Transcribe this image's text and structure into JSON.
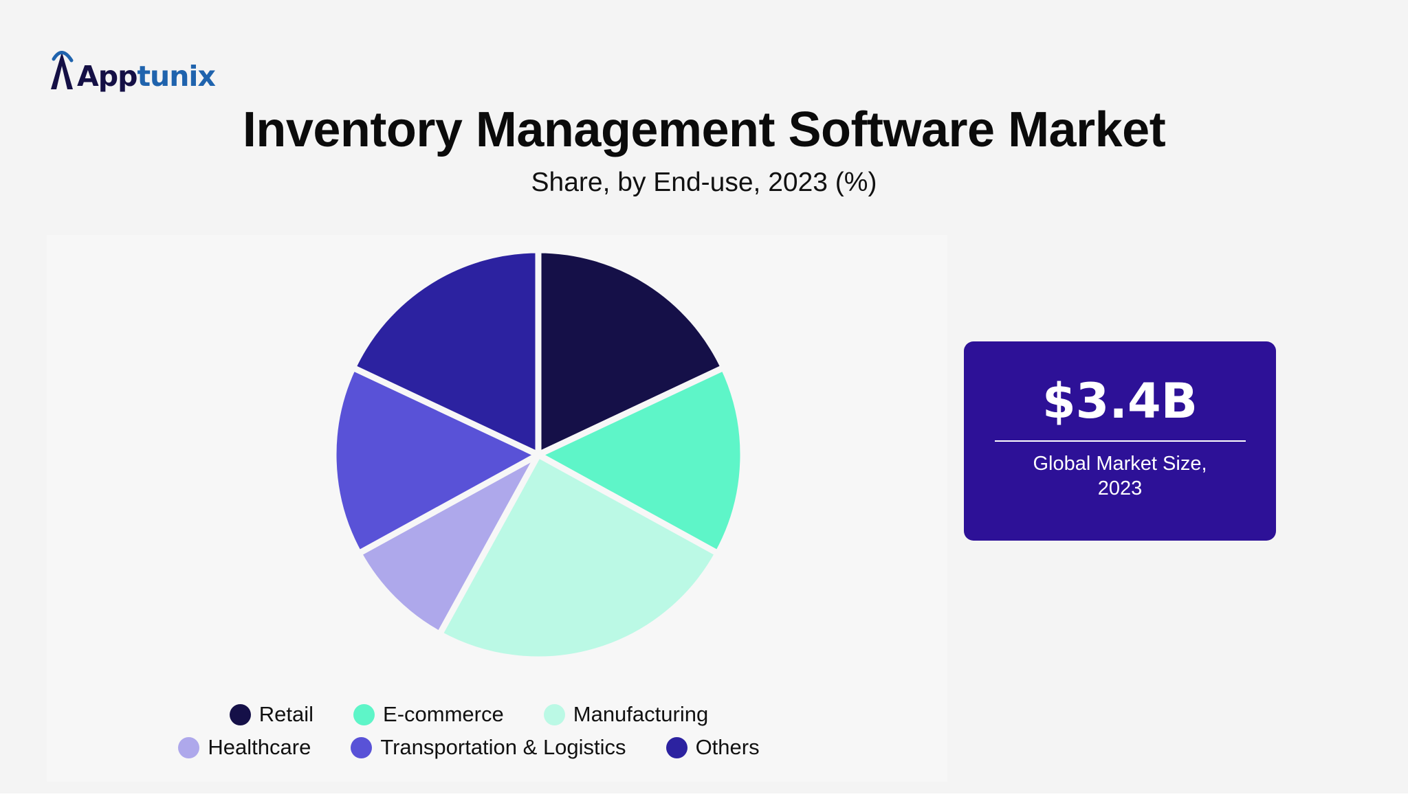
{
  "brand": {
    "logo_text_primary": "App",
    "logo_text_accent": "tunix",
    "logo_color": "#151045",
    "logo_accent_color": "#1f63ad"
  },
  "header": {
    "title": "Inventory Management Software Market",
    "subtitle": "Share, by End-use, 2023 (%)"
  },
  "chart_data": {
    "type": "pie",
    "title": "Inventory Management Software Market",
    "subtitle": "Share, by End-use, 2023 (%)",
    "unit": "%",
    "legend_position": "bottom",
    "categories": [
      "Retail",
      "E-commerce",
      "Manufacturing",
      "Healthcare",
      "Transportation & Logistics",
      "Others"
    ],
    "values": [
      18,
      15,
      25,
      9,
      15,
      18
    ],
    "colors": [
      "#151048",
      "#5ef5c8",
      "#bbf9e5",
      "#aea8eb",
      "#5952d7",
      "#2c22a0"
    ]
  },
  "legend": {
    "rows": [
      [
        {
          "label": "Retail",
          "color": "#151048"
        },
        {
          "label": "E-commerce",
          "color": "#5ef5c8"
        },
        {
          "label": "Manufacturing",
          "color": "#bbf9e5"
        }
      ],
      [
        {
          "label": "Healthcare",
          "color": "#aea8eb"
        },
        {
          "label": "Transportation & Logistics",
          "color": "#5952d7"
        },
        {
          "label": "Others",
          "color": "#2c22a0"
        }
      ]
    ]
  },
  "kpi": {
    "value": "$3.4B",
    "label": "Global Market Size, 2023",
    "background": "#2d1197"
  }
}
